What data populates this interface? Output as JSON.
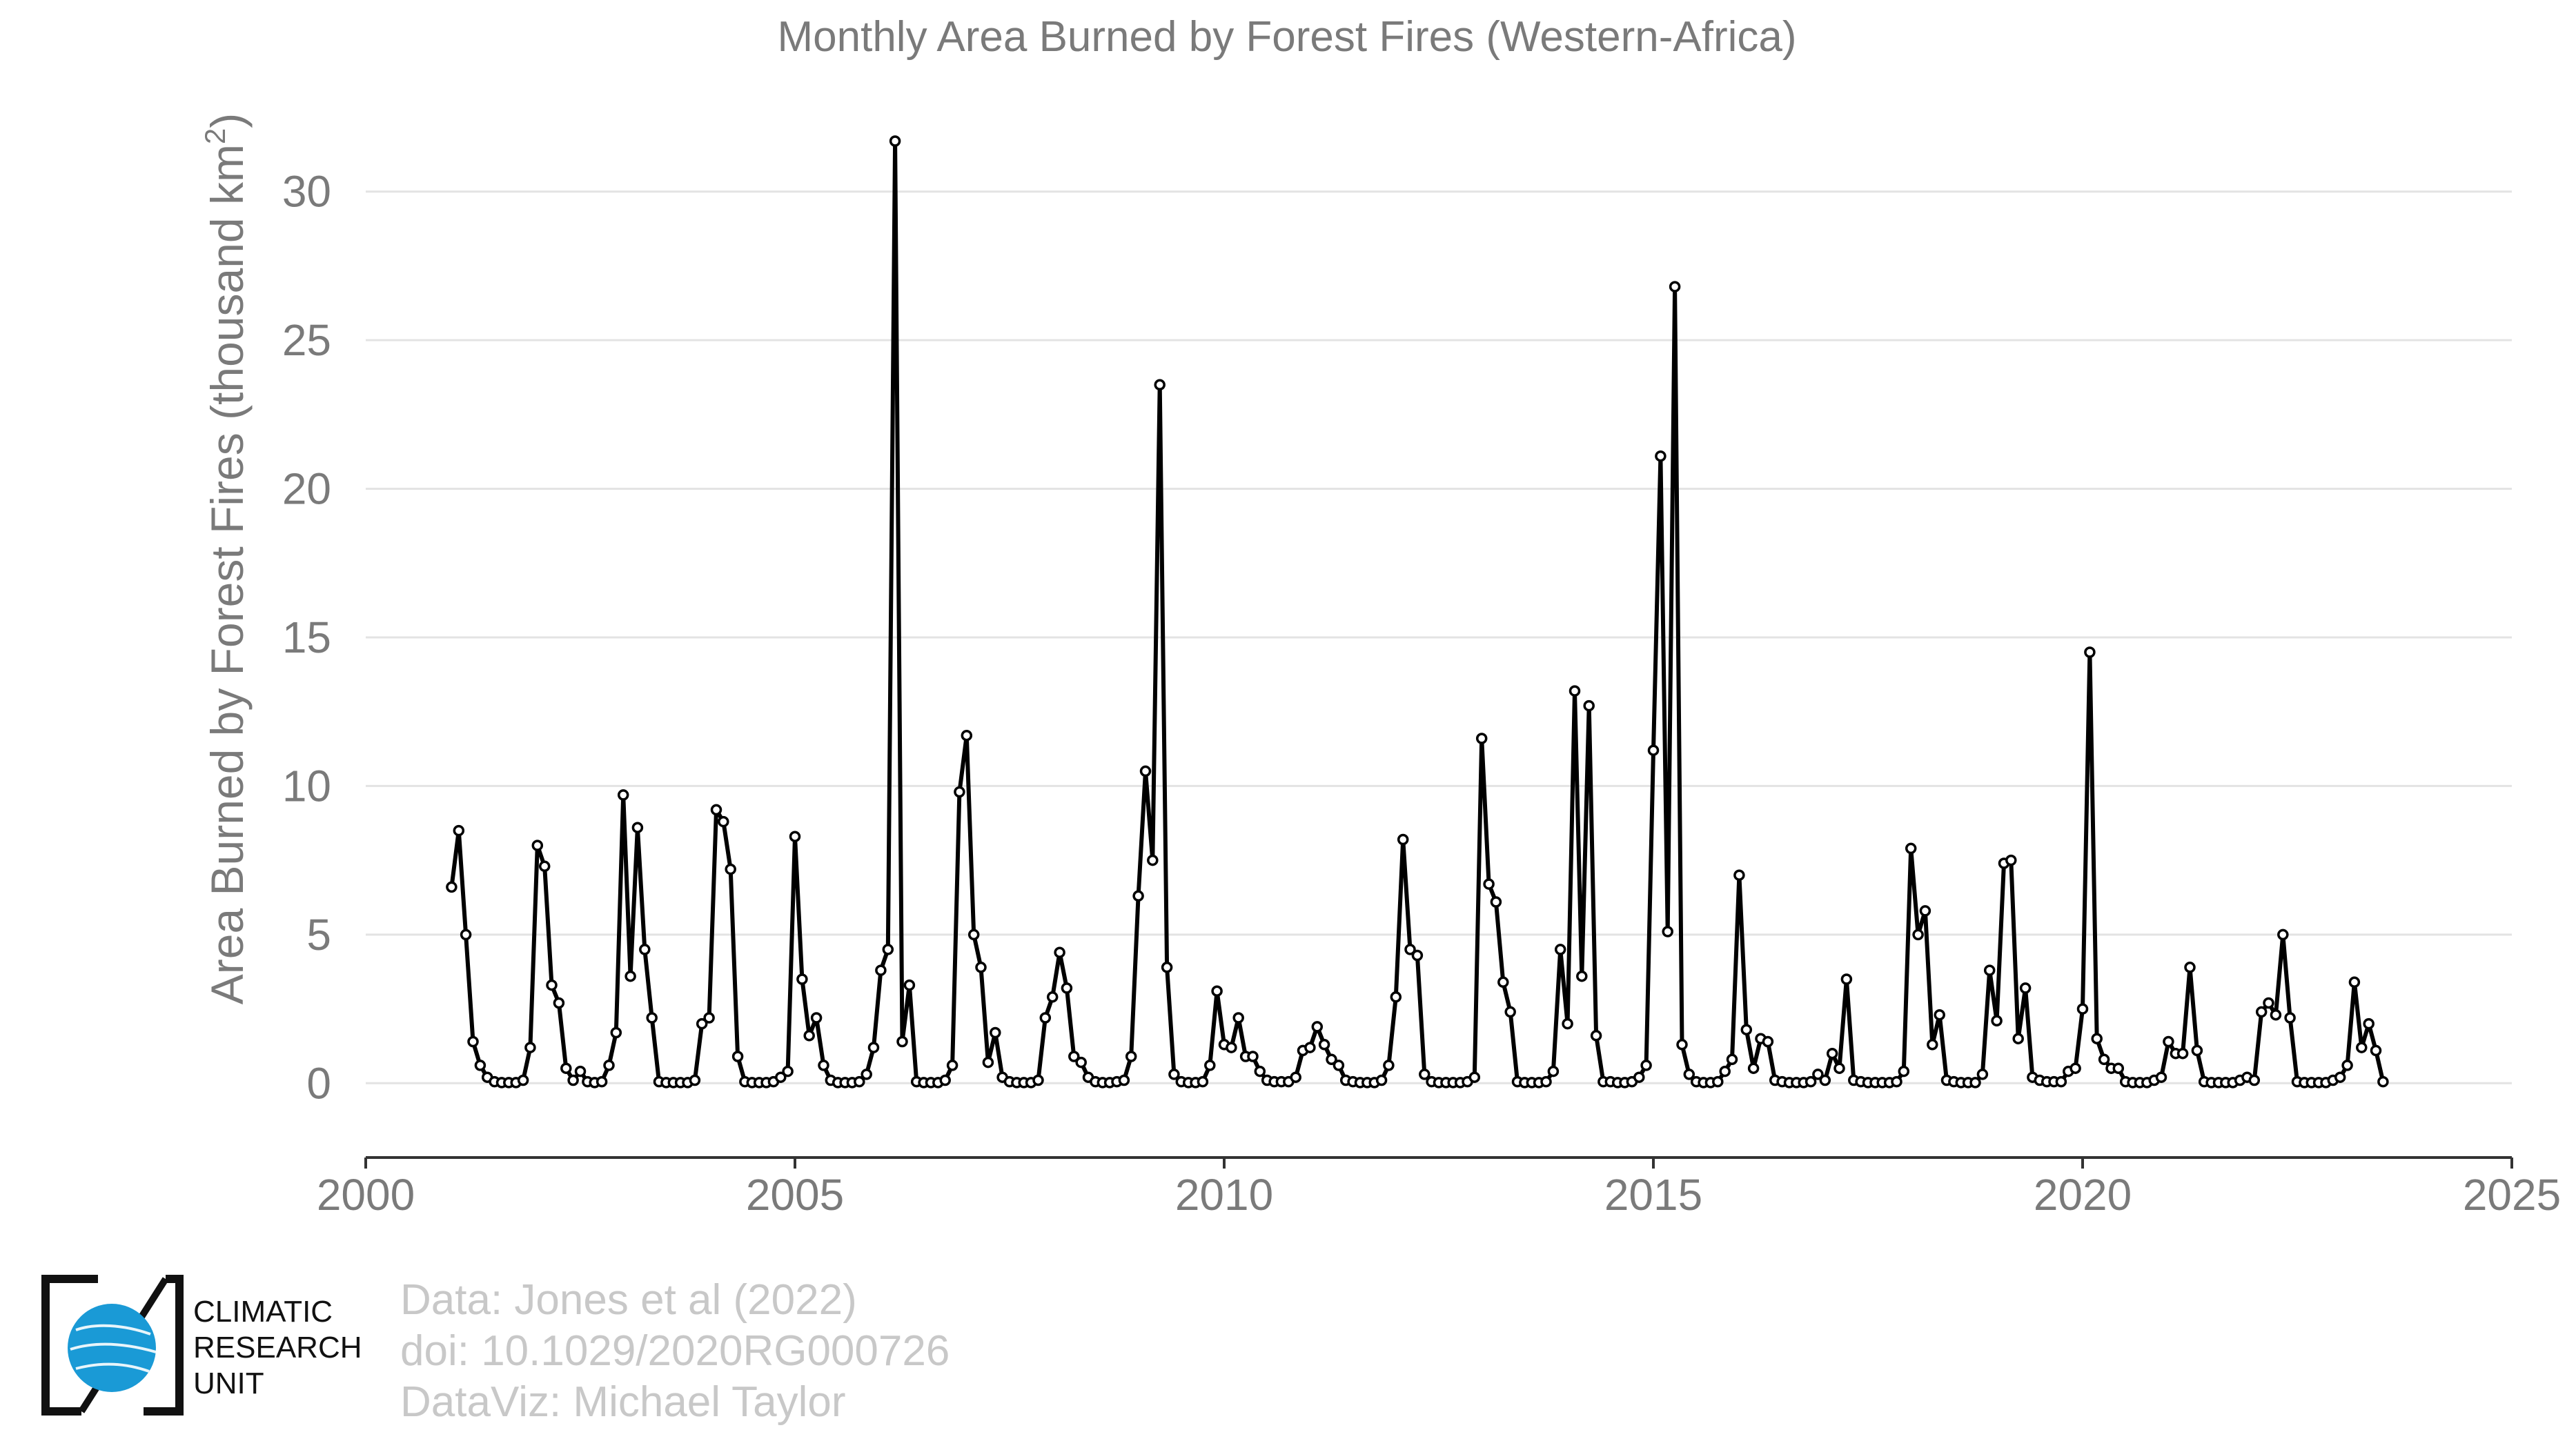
{
  "chart_data": {
    "type": "line",
    "title": "Monthly Area Burned by Forest Fires (Western-Africa)",
    "ylabel": "Area Burned by Forest Fires (thousand km",
    "ylabel_sup": "2",
    "ylabel_end": ")",
    "xlabel": "",
    "xlim": [
      2000,
      2025
    ],
    "ylim": [
      -2.5,
      32.5
    ],
    "xticks": [
      2000,
      2005,
      2010,
      2015,
      2020,
      2025
    ],
    "yticks": [
      0,
      5,
      10,
      15,
      20,
      25,
      30
    ],
    "grid": "horizontal",
    "start_year": 2001,
    "series": [
      {
        "color": "#000000",
        "values": [
          6.6,
          8.5,
          5.0,
          1.4,
          0.6,
          0.2,
          0.05,
          0.02,
          0.02,
          0.02,
          0.1,
          1.2,
          8.0,
          7.3,
          3.3,
          2.7,
          0.5,
          0.1,
          0.4,
          0.05,
          0.02,
          0.05,
          0.6,
          1.7,
          9.7,
          3.6,
          8.6,
          4.5,
          2.2,
          0.05,
          0.02,
          0.02,
          0.02,
          0.02,
          0.1,
          2.0,
          2.2,
          9.2,
          8.8,
          7.2,
          0.9,
          0.05,
          0.02,
          0.02,
          0.02,
          0.05,
          0.2,
          0.4,
          8.3,
          3.5,
          1.6,
          2.2,
          0.6,
          0.1,
          0.02,
          0.02,
          0.02,
          0.05,
          0.3,
          1.2,
          3.8,
          4.5,
          31.7,
          1.4,
          3.3,
          0.05,
          0.02,
          0.02,
          0.02,
          0.1,
          0.6,
          9.8,
          11.7,
          5.0,
          3.9,
          0.7,
          1.7,
          0.2,
          0.05,
          0.02,
          0.02,
          0.02,
          0.1,
          2.2,
          2.9,
          4.4,
          3.2,
          0.9,
          0.7,
          0.2,
          0.05,
          0.02,
          0.02,
          0.05,
          0.1,
          0.9,
          6.3,
          10.5,
          7.5,
          23.5,
          3.9,
          0.3,
          0.05,
          0.02,
          0.02,
          0.05,
          0.6,
          3.1,
          1.3,
          1.2,
          2.2,
          0.9,
          0.9,
          0.4,
          0.1,
          0.05,
          0.05,
          0.05,
          0.2,
          1.1,
          1.2,
          1.9,
          1.3,
          0.8,
          0.6,
          0.1,
          0.05,
          0.02,
          0.02,
          0.02,
          0.1,
          0.6,
          2.9,
          8.2,
          4.5,
          4.3,
          0.3,
          0.05,
          0.02,
          0.02,
          0.02,
          0.02,
          0.05,
          0.2,
          11.6,
          6.7,
          6.1,
          3.4,
          2.4,
          0.05,
          0.02,
          0.02,
          0.02,
          0.05,
          0.4,
          4.5,
          2.0,
          13.2,
          3.6,
          12.7,
          1.6,
          0.05,
          0.05,
          0.02,
          0.02,
          0.05,
          0.2,
          0.6,
          11.2,
          21.1,
          5.1,
          26.8,
          1.3,
          0.3,
          0.05,
          0.02,
          0.02,
          0.05,
          0.4,
          0.8,
          7.0,
          1.8,
          0.5,
          1.5,
          1.4,
          0.1,
          0.05,
          0.02,
          0.02,
          0.02,
          0.05,
          0.3,
          0.1,
          1.0,
          0.5,
          3.5,
          0.1,
          0.05,
          0.02,
          0.02,
          0.02,
          0.02,
          0.05,
          0.4,
          7.9,
          5.0,
          5.8,
          1.3,
          2.3,
          0.1,
          0.05,
          0.02,
          0.02,
          0.02,
          0.3,
          3.8,
          2.1,
          7.4,
          7.5,
          1.5,
          3.2,
          0.2,
          0.1,
          0.05,
          0.05,
          0.05,
          0.4,
          0.5,
          2.5,
          14.5,
          1.5,
          0.8,
          0.5,
          0.5,
          0.05,
          0.02,
          0.02,
          0.02,
          0.1,
          0.2,
          1.4,
          1.0,
          1.0,
          3.9,
          1.1,
          0.05,
          0.02,
          0.02,
          0.02,
          0.02,
          0.1,
          0.2,
          0.1,
          2.4,
          2.7,
          2.3,
          5.0,
          2.2,
          0.05,
          0.02,
          0.02,
          0.02,
          0.02,
          0.1,
          0.2,
          0.6,
          3.4,
          1.2,
          2.0,
          1.1,
          0.05
        ]
      }
    ]
  },
  "credits": {
    "line1": "Data: Jones et al (2022)",
    "line2": "doi: 10.1029/2020RG000726",
    "line3": "DataViz: Michael Taylor"
  },
  "logo": {
    "line1": "CLIMATIC",
    "line2": "RESEARCH",
    "line3": "UNIT",
    "color": "#1a9ad6"
  }
}
